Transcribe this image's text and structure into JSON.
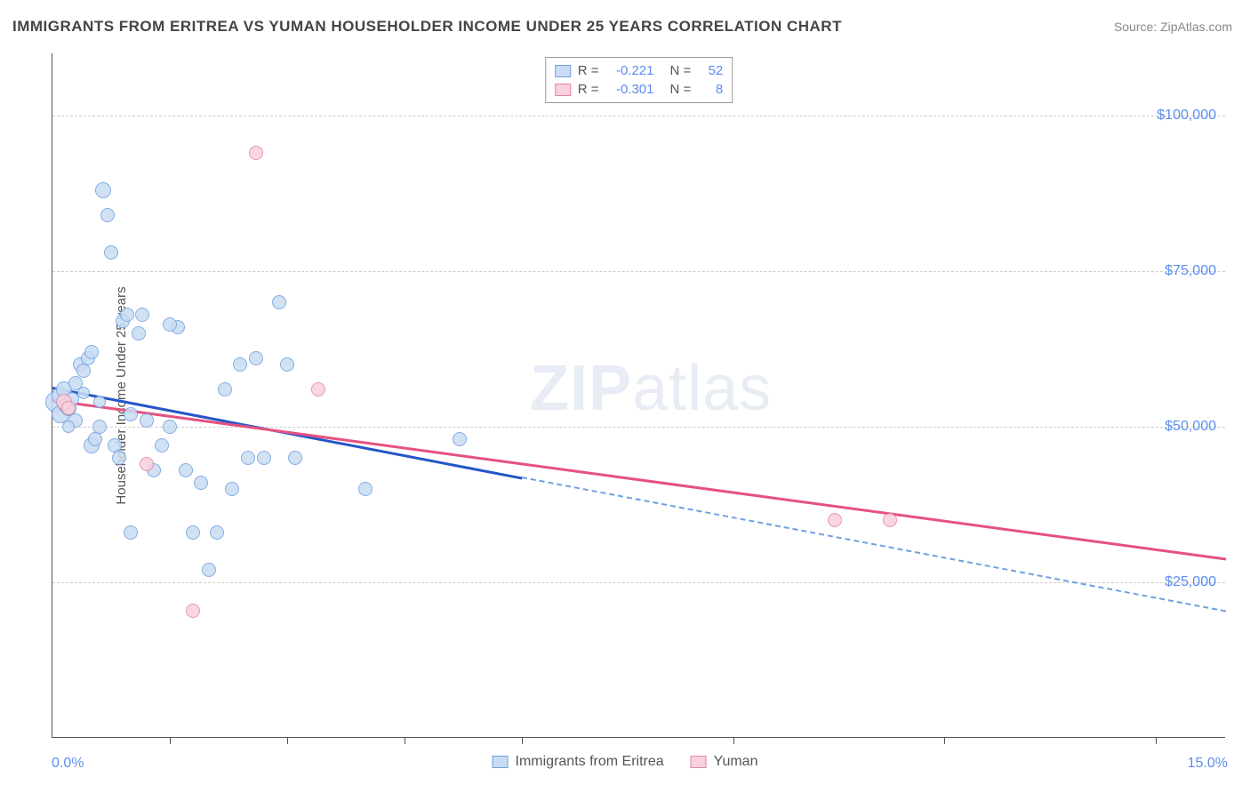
{
  "title": "IMMIGRANTS FROM ERITREA VS YUMAN HOUSEHOLDER INCOME UNDER 25 YEARS CORRELATION CHART",
  "source": "Source: ZipAtlas.com",
  "y_axis_title": "Householder Income Under 25 years",
  "watermark_bold": "ZIP",
  "watermark_rest": "atlas",
  "chart": {
    "type": "scatter",
    "background_color": "#ffffff",
    "grid_color": "#cccccc",
    "axis_color": "#555555",
    "x": {
      "min": 0.0,
      "max": 15.0,
      "label_min": "0.0%",
      "label_max": "15.0%",
      "ticks_pct": [
        1.5,
        3.0,
        4.5,
        6.0,
        8.7,
        11.4,
        14.1
      ],
      "label_color": "#5b8def"
    },
    "y": {
      "min": 0,
      "max": 110000,
      "gridlines": [
        25000,
        50000,
        75000,
        100000
      ],
      "labels": [
        "$25,000",
        "$50,000",
        "$75,000",
        "$100,000"
      ],
      "label_color": "#5b8def"
    },
    "series": [
      {
        "name": "Immigrants from Eritrea",
        "fill": "#c9dcf3",
        "stroke": "#6fa0e0",
        "trend_color": "#2456c9",
        "trend_dash_color": "#6fa0e0",
        "R": "-0.221",
        "N": "52",
        "trend": {
          "x1": 0.0,
          "y1": 56500,
          "x2_solid": 6.0,
          "y2_solid": 42000,
          "x2_dash": 15.0,
          "y2_dash": 20500
        },
        "points": [
          {
            "x": 0.05,
            "y": 54000,
            "r": 12
          },
          {
            "x": 0.1,
            "y": 55000,
            "r": 10
          },
          {
            "x": 0.1,
            "y": 52000,
            "r": 10
          },
          {
            "x": 0.15,
            "y": 56000,
            "r": 9
          },
          {
            "x": 0.2,
            "y": 53000,
            "r": 9
          },
          {
            "x": 0.25,
            "y": 54500,
            "r": 8
          },
          {
            "x": 0.3,
            "y": 51000,
            "r": 8
          },
          {
            "x": 0.3,
            "y": 57000,
            "r": 8
          },
          {
            "x": 0.35,
            "y": 60000,
            "r": 8
          },
          {
            "x": 0.4,
            "y": 59000,
            "r": 8
          },
          {
            "x": 0.45,
            "y": 61000,
            "r": 8
          },
          {
            "x": 0.5,
            "y": 62000,
            "r": 8
          },
          {
            "x": 0.5,
            "y": 47000,
            "r": 9
          },
          {
            "x": 0.55,
            "y": 48000,
            "r": 8
          },
          {
            "x": 0.6,
            "y": 50000,
            "r": 8
          },
          {
            "x": 0.65,
            "y": 88000,
            "r": 9
          },
          {
            "x": 0.7,
            "y": 84000,
            "r": 8
          },
          {
            "x": 0.75,
            "y": 78000,
            "r": 8
          },
          {
            "x": 0.8,
            "y": 47000,
            "r": 8
          },
          {
            "x": 0.85,
            "y": 45000,
            "r": 8
          },
          {
            "x": 0.9,
            "y": 67000,
            "r": 8
          },
          {
            "x": 0.95,
            "y": 68000,
            "r": 8
          },
          {
            "x": 1.0,
            "y": 52000,
            "r": 8
          },
          {
            "x": 1.0,
            "y": 33000,
            "r": 8
          },
          {
            "x": 1.1,
            "y": 65000,
            "r": 8
          },
          {
            "x": 1.15,
            "y": 68000,
            "r": 8
          },
          {
            "x": 1.2,
            "y": 51000,
            "r": 8
          },
          {
            "x": 1.3,
            "y": 43000,
            "r": 8
          },
          {
            "x": 1.4,
            "y": 47000,
            "r": 8
          },
          {
            "x": 1.5,
            "y": 50000,
            "r": 8
          },
          {
            "x": 1.6,
            "y": 66000,
            "r": 8
          },
          {
            "x": 1.7,
            "y": 43000,
            "r": 8
          },
          {
            "x": 1.8,
            "y": 33000,
            "r": 8
          },
          {
            "x": 1.9,
            "y": 41000,
            "r": 8
          },
          {
            "x": 2.0,
            "y": 27000,
            "r": 8
          },
          {
            "x": 2.1,
            "y": 33000,
            "r": 8
          },
          {
            "x": 2.2,
            "y": 56000,
            "r": 8
          },
          {
            "x": 2.3,
            "y": 40000,
            "r": 8
          },
          {
            "x": 2.4,
            "y": 60000,
            "r": 8
          },
          {
            "x": 2.5,
            "y": 45000,
            "r": 8
          },
          {
            "x": 2.6,
            "y": 61000,
            "r": 8
          },
          {
            "x": 2.7,
            "y": 45000,
            "r": 8
          },
          {
            "x": 2.9,
            "y": 70000,
            "r": 8
          },
          {
            "x": 3.0,
            "y": 60000,
            "r": 8
          },
          {
            "x": 3.1,
            "y": 45000,
            "r": 8
          },
          {
            "x": 4.0,
            "y": 40000,
            "r": 8
          },
          {
            "x": 5.2,
            "y": 48000,
            "r": 8
          },
          {
            "x": 0.4,
            "y": 55500,
            "r": 7
          },
          {
            "x": 0.6,
            "y": 54000,
            "r": 7
          },
          {
            "x": 0.2,
            "y": 50000,
            "r": 7
          },
          {
            "x": 0.15,
            "y": 53500,
            "r": 7
          },
          {
            "x": 1.5,
            "y": 66500,
            "r": 8
          }
        ]
      },
      {
        "name": "Yuman",
        "fill": "#f7d1dc",
        "stroke": "#e584a5",
        "trend_color": "#e6517f",
        "R": "-0.301",
        "N": "8",
        "trend": {
          "x1": 0.0,
          "y1": 54500,
          "x2_solid": 15.0,
          "y2_solid": 29000
        },
        "points": [
          {
            "x": 0.15,
            "y": 54000,
            "r": 9
          },
          {
            "x": 0.2,
            "y": 53000,
            "r": 8
          },
          {
            "x": 1.2,
            "y": 44000,
            "r": 8
          },
          {
            "x": 1.8,
            "y": 20500,
            "r": 8
          },
          {
            "x": 2.6,
            "y": 94000,
            "r": 8
          },
          {
            "x": 3.4,
            "y": 56000,
            "r": 8
          },
          {
            "x": 10.0,
            "y": 35000,
            "r": 8
          },
          {
            "x": 10.7,
            "y": 35000,
            "r": 8
          }
        ]
      }
    ]
  },
  "legend_top": [
    {
      "swatch_fill": "#c9dcf3",
      "swatch_stroke": "#6fa0e0",
      "R_label": "R =",
      "R_val": "-0.221",
      "N_label": "N =",
      "N_val": "52"
    },
    {
      "swatch_fill": "#f7d1dc",
      "swatch_stroke": "#e584a5",
      "R_label": "R =",
      "R_val": "-0.301",
      "N_label": "N =",
      "N_val": "8"
    }
  ],
  "legend_bottom": [
    {
      "swatch_fill": "#c9dcf3",
      "swatch_stroke": "#6fa0e0",
      "label": "Immigrants from Eritrea"
    },
    {
      "swatch_fill": "#f7d1dc",
      "swatch_stroke": "#e584a5",
      "label": "Yuman"
    }
  ]
}
